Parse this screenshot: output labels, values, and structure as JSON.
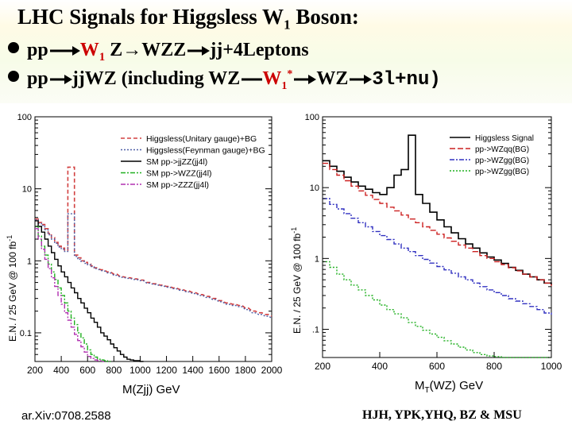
{
  "slide": {
    "title": "LHC Signals for Higgsless W",
    "title_sub": "1",
    "title_end": " Boson:",
    "line1": {
      "pp": "pp",
      "w1": "W",
      "w1_sub": "1",
      "z": " Z",
      "arrow": "→",
      "wzz": "WZZ",
      "tail": "jj+4Leptons"
    },
    "line2": {
      "pp": "pp",
      "jjwz": "jjWZ (including WZ",
      "w1star": "W",
      "w1star_sub": "1",
      "star": "*",
      "wz": "WZ",
      "tail": "3l+nu)"
    },
    "footer_left": "ar.Xiv:0708.2588",
    "footer_right": "HJH, YPK,YHQ, BZ & MSU"
  },
  "chart_data": [
    {
      "type": "line",
      "title": "",
      "xlabel": "M(Zjj)  GeV",
      "ylabel": "E.N. / 25 GeV @ 100 fb",
      "ylabel_sup": "-1",
      "xlim": [
        200,
        2000
      ],
      "ylim": [
        0.04,
        100
      ],
      "yscale": "log",
      "xticks": [
        "200",
        "400",
        "600",
        "800",
        "1000",
        "1200",
        "1400",
        "1600",
        "1800",
        "2000"
      ],
      "yticks": [
        "0.1",
        "1",
        "10",
        "100"
      ],
      "legend": [
        "Higgsless(Unitary gauge)+BG",
        "Higgsless(Feynman gauge)+BG",
        "SM pp->jjZZ(jj4l)",
        "SM pp->WZZ(jj4l)",
        "SM pp->ZZZ(jj4l)"
      ],
      "series": [
        {
          "name": "Higgsless(Unitary gauge)+BG",
          "color": "#d24040",
          "dash": "5,3",
          "x": [
            200,
            225,
            250,
            275,
            300,
            325,
            350,
            375,
            400,
            425,
            450,
            475,
            500,
            525,
            550,
            575,
            600,
            625,
            650,
            700,
            750,
            800,
            850,
            900,
            950,
            1000,
            1050,
            1100,
            1150,
            1200,
            1250,
            1300,
            1350,
            1400,
            1450,
            1500,
            1550,
            1600,
            1650,
            1700,
            1750,
            1800,
            1850,
            1900,
            1950,
            2000
          ],
          "y": [
            3.8,
            3.4,
            3.2,
            2.8,
            2.4,
            2.1,
            1.8,
            1.6,
            1.5,
            1.4,
            20,
            20,
            1.2,
            1.1,
            1.0,
            0.95,
            0.9,
            0.85,
            0.8,
            0.75,
            0.7,
            0.65,
            0.6,
            0.58,
            0.56,
            0.54,
            0.5,
            0.48,
            0.46,
            0.44,
            0.42,
            0.4,
            0.38,
            0.36,
            0.34,
            0.32,
            0.3,
            0.28,
            0.26,
            0.25,
            0.24,
            0.22,
            0.2,
            0.19,
            0.18,
            0.17
          ]
        },
        {
          "name": "Higgsless(Feynman gauge)+BG",
          "color": "#5060a8",
          "dash": "2,2",
          "x": [
            200,
            225,
            250,
            275,
            300,
            325,
            350,
            375,
            400,
            425,
            450,
            475,
            500,
            525,
            550,
            575,
            600,
            625,
            650,
            700,
            750,
            800,
            850,
            900,
            950,
            1000,
            1050,
            1100,
            1150,
            1200,
            1250,
            1300,
            1350,
            1400,
            1450,
            1500,
            1550,
            1600,
            1650,
            1700,
            1750,
            1800,
            1850,
            1900,
            1950,
            2000
          ],
          "y": [
            3.7,
            3.3,
            3.1,
            2.7,
            2.3,
            2.0,
            1.75,
            1.55,
            1.45,
            1.35,
            4.5,
            4.5,
            1.15,
            1.05,
            0.98,
            0.92,
            0.88,
            0.83,
            0.78,
            0.73,
            0.68,
            0.63,
            0.59,
            0.57,
            0.55,
            0.53,
            0.49,
            0.47,
            0.45,
            0.43,
            0.41,
            0.39,
            0.37,
            0.35,
            0.33,
            0.31,
            0.29,
            0.27,
            0.25,
            0.24,
            0.23,
            0.21,
            0.19,
            0.18,
            0.17,
            0.16
          ]
        },
        {
          "name": "SM pp->jjZZ(jj4l)",
          "color": "#000000",
          "dash": "",
          "x": [
            200,
            225,
            250,
            275,
            300,
            325,
            350,
            375,
            400,
            425,
            450,
            475,
            500,
            525,
            550,
            575,
            600,
            625,
            650,
            675,
            700,
            725,
            750,
            775,
            800,
            825,
            850,
            875,
            900,
            925,
            950,
            975,
            1000
          ],
          "y": [
            3.6,
            3.0,
            2.5,
            2.0,
            1.6,
            1.3,
            1.05,
            0.85,
            0.7,
            0.6,
            0.5,
            0.42,
            0.36,
            0.3,
            0.26,
            0.22,
            0.19,
            0.16,
            0.14,
            0.12,
            0.1,
            0.09,
            0.08,
            0.07,
            0.062,
            0.056,
            0.05,
            0.046,
            0.043,
            0.042,
            0.041,
            0.041,
            0.04
          ]
        },
        {
          "name": "SM pp->WZZ(jj4l)",
          "color": "#20b020",
          "dash": "6,2,2,2",
          "x": [
            200,
            225,
            250,
            275,
            300,
            325,
            350,
            375,
            400,
            425,
            450,
            475,
            500,
            525,
            550,
            575,
            600,
            625,
            650,
            675,
            700,
            725,
            750
          ],
          "y": [
            3.0,
            2.2,
            1.6,
            1.2,
            0.9,
            0.7,
            0.55,
            0.42,
            0.33,
            0.26,
            0.2,
            0.16,
            0.13,
            0.1,
            0.085,
            0.07,
            0.058,
            0.05,
            0.046,
            0.043,
            0.042,
            0.041,
            0.04
          ]
        },
        {
          "name": "SM pp->ZZZ(jj4l)",
          "color": "#b030b0",
          "dash": "6,2,2,2",
          "x": [
            200,
            225,
            250,
            275,
            300,
            325,
            350,
            375,
            400,
            425,
            450,
            475,
            500,
            525,
            550,
            575,
            600,
            625,
            650,
            675,
            700
          ],
          "y": [
            2.8,
            2.0,
            1.45,
            1.05,
            0.78,
            0.58,
            0.44,
            0.33,
            0.25,
            0.19,
            0.15,
            0.12,
            0.095,
            0.078,
            0.064,
            0.054,
            0.047,
            0.044,
            0.042,
            0.041,
            0.04
          ]
        }
      ]
    },
    {
      "type": "line",
      "title": "",
      "xlabel": "M",
      "xlabel_sub": "T",
      "xlabel_end": "(WZ)  GeV",
      "ylabel": "E.N. / 25 GeV @ 100 fb",
      "ylabel_sup": "-1",
      "xlim": [
        200,
        1000
      ],
      "ylim": [
        0.04,
        100
      ],
      "yscale": "log",
      "xticks": [
        "200",
        "400",
        "600",
        "800",
        "1000"
      ],
      "yticks": [
        ".1",
        "1",
        "10",
        "100"
      ],
      "legend": [
        "Higgsless Signal",
        "pp->WZqq(BG)",
        "pp->WZgg(BG)",
        "pp->WZgg(BG)"
      ],
      "series": [
        {
          "name": "Higgsless Signal",
          "color": "#000000",
          "dash": "",
          "x": [
            200,
            225,
            250,
            275,
            300,
            325,
            350,
            375,
            400,
            425,
            450,
            475,
            500,
            525,
            550,
            575,
            600,
            625,
            650,
            675,
            700,
            725,
            750,
            775,
            800,
            825,
            850,
            875,
            900,
            925,
            950,
            975,
            1000
          ],
          "y": [
            24,
            20,
            17,
            14,
            12,
            10.5,
            9.5,
            8.5,
            8,
            10,
            15,
            18,
            55,
            8,
            6,
            4.5,
            3.5,
            2.8,
            2.3,
            1.9,
            1.6,
            1.4,
            1.2,
            1.05,
            0.95,
            0.85,
            0.75,
            0.68,
            0.6,
            0.55,
            0.5,
            0.45,
            0.42
          ]
        },
        {
          "name": "pp->WZqq(BG)",
          "color": "#cc2020",
          "dash": "7,3",
          "x": [
            200,
            225,
            250,
            275,
            300,
            325,
            350,
            375,
            400,
            425,
            450,
            475,
            500,
            525,
            550,
            575,
            600,
            625,
            650,
            675,
            700,
            725,
            750,
            775,
            800,
            825,
            850,
            875,
            900,
            925,
            950,
            975,
            1000
          ],
          "y": [
            22,
            18,
            15,
            12.5,
            10.5,
            9,
            7.8,
            6.8,
            6,
            5.3,
            4.7,
            4.1,
            3.6,
            3.2,
            2.8,
            2.5,
            2.2,
            1.95,
            1.75,
            1.55,
            1.4,
            1.25,
            1.1,
            1.0,
            0.9,
            0.82,
            0.74,
            0.67,
            0.6,
            0.55,
            0.5,
            0.45,
            0.41
          ]
        },
        {
          "name": "pp->WZgg(BG)",
          "color": "#3030c0",
          "dash": "6,2,2,2",
          "x": [
            200,
            225,
            250,
            275,
            300,
            325,
            350,
            375,
            400,
            425,
            450,
            475,
            500,
            525,
            550,
            575,
            600,
            625,
            650,
            675,
            700,
            725,
            750,
            775,
            800,
            825,
            850,
            875,
            900,
            925,
            950,
            975,
            1000
          ],
          "y": [
            7,
            5.8,
            5,
            4.3,
            3.7,
            3.2,
            2.8,
            2.4,
            2.1,
            1.85,
            1.6,
            1.4,
            1.25,
            1.1,
            0.97,
            0.86,
            0.77,
            0.69,
            0.62,
            0.55,
            0.5,
            0.45,
            0.4,
            0.36,
            0.33,
            0.3,
            0.27,
            0.25,
            0.23,
            0.21,
            0.19,
            0.17,
            0.16
          ]
        },
        {
          "name": "pp->WZgg(BG)",
          "color": "#20b020",
          "dash": "2,2",
          "x": [
            200,
            225,
            250,
            275,
            300,
            325,
            350,
            375,
            400,
            425,
            450,
            475,
            500,
            525,
            550,
            575,
            600,
            625,
            650,
            675,
            700,
            725,
            750,
            775,
            800,
            825,
            850,
            875,
            900,
            925,
            950,
            975,
            1000
          ],
          "y": [
            0.9,
            0.75,
            0.6,
            0.5,
            0.42,
            0.36,
            0.3,
            0.26,
            0.22,
            0.19,
            0.165,
            0.145,
            0.125,
            0.11,
            0.097,
            0.086,
            0.077,
            0.069,
            0.062,
            0.056,
            0.051,
            0.047,
            0.044,
            0.042,
            0.041,
            0.04,
            0.04,
            0.04,
            0.04,
            0.04,
            0.04,
            0.04,
            0.04
          ]
        }
      ]
    }
  ]
}
